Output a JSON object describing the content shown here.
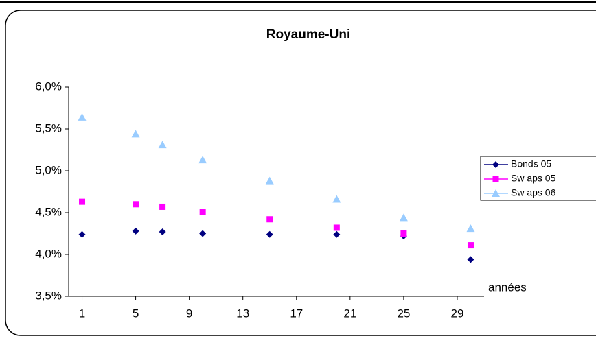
{
  "chart_data": {
    "type": "scatter",
    "title": "Royaume-Uni",
    "x_label": "années",
    "x": [
      1,
      5,
      7,
      10,
      15,
      20,
      25,
      30
    ],
    "series": [
      {
        "name": "Bonds 05",
        "color": "#000080",
        "marker": "diamond",
        "values": [
          4.24,
          4.28,
          4.27,
          4.25,
          4.24,
          4.24,
          4.22,
          3.94
        ]
      },
      {
        "name": "Sw aps 05",
        "color": "#ff00ff",
        "marker": "square",
        "values": [
          4.63,
          4.6,
          4.57,
          4.51,
          4.42,
          4.32,
          4.25,
          4.11
        ]
      },
      {
        "name": "Sw aps 06",
        "color": "#99ccff",
        "marker": "triangle",
        "values": [
          5.64,
          5.44,
          5.31,
          5.13,
          4.88,
          4.66,
          4.44,
          4.31
        ]
      }
    ],
    "xlim": [
      0,
      31
    ],
    "xticks": [
      1,
      5,
      9,
      13,
      17,
      21,
      25,
      29
    ],
    "ylim": [
      3.5,
      6.0
    ],
    "yticks": [
      {
        "value": 3.5,
        "label": "3,5%"
      },
      {
        "value": 4.0,
        "label": "4,0%"
      },
      {
        "value": 4.5,
        "label": "4,5%"
      },
      {
        "value": 5.0,
        "label": "5,0%"
      },
      {
        "value": 5.5,
        "label": "5,5%"
      },
      {
        "value": 6.0,
        "label": "6,0%"
      }
    ],
    "grid": false,
    "legend": "right"
  }
}
